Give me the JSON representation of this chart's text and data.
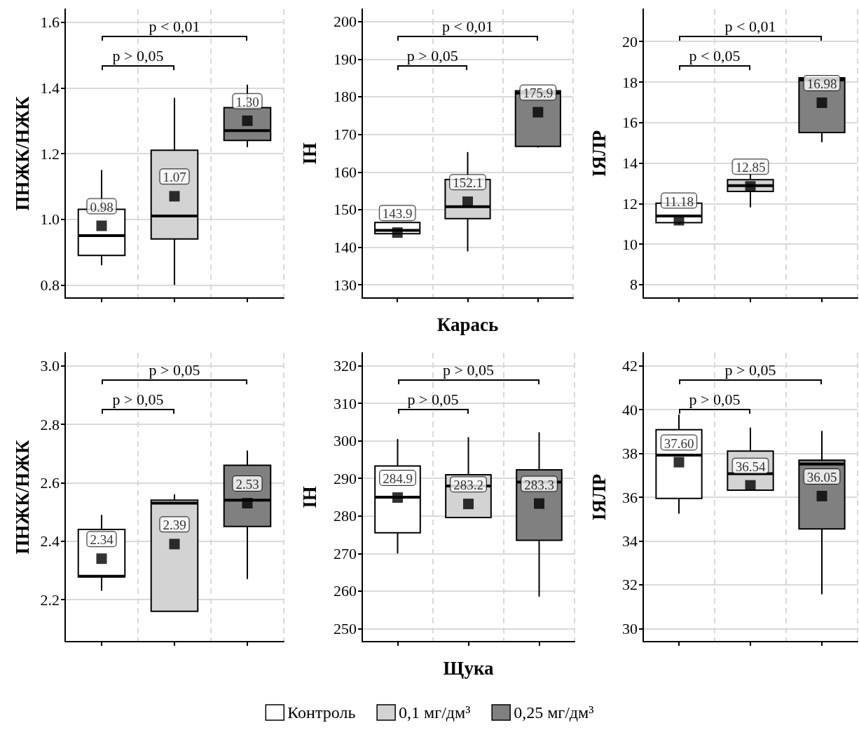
{
  "chart_data": [
    {
      "type": "box",
      "categories": [
        null,
        null,
        null
      ],
      "ylabel": "ПНЖК/НЖК",
      "ylim": [
        0.76,
        1.64
      ],
      "yticks": [
        0.8,
        {
          "value": 1,
          "label": "1.0"
        },
        1.2,
        1.4,
        1.6
      ],
      "grid": true,
      "tick_labels": "y",
      "marker": "square",
      "annotations": [
        "p < 0,01",
        "p > 0,05"
      ],
      "series": [
        {
          "color": "#ffffff",
          "boxes": [
            {
              "low": 0.86,
              "q1": 0.89,
              "median": 0.95,
              "q3": 1.03,
              "high": 1.15,
              "mean": 0.98
            },
            null,
            null
          ],
          "value_labels": [
            "0.98",
            null,
            null
          ]
        },
        {
          "color": "#d3d3d3",
          "boxes": [
            null,
            {
              "low": 0.8,
              "q1": 0.94,
              "median": 1.01,
              "q3": 1.21,
              "high": 1.37,
              "mean": 1.07
            },
            null
          ],
          "value_labels": [
            null,
            "1.07",
            null
          ]
        },
        {
          "color": "#808080",
          "boxes": [
            null,
            null,
            {
              "low": 1.22,
              "q1": 1.24,
              "median": 1.27,
              "q3": 1.34,
              "high": 1.41,
              "mean": 1.3
            }
          ],
          "value_labels": [
            null,
            null,
            "1.30"
          ]
        }
      ]
    },
    {
      "type": "box",
      "categories": [
        null,
        null,
        null
      ],
      "xlabel": "Карась",
      "ylabel": "ІН",
      "ylim": [
        126.5,
        203.3
      ],
      "yticks": [
        130,
        140,
        150,
        160,
        170,
        180,
        190,
        200
      ],
      "grid": true,
      "tick_labels": "y",
      "marker": "square",
      "annotations": [
        "p < 0,01",
        "p > 0,05"
      ],
      "series": [
        {
          "color": "#ffffff",
          "boxes": [
            {
              "low": 143.6,
              "q1": 143.6,
              "median": 144.5,
              "q3": 146.6,
              "high": 146.6,
              "mean": 143.9
            },
            null,
            null
          ],
          "value_labels": [
            "143.9",
            null,
            null
          ]
        },
        {
          "color": "#d3d3d3",
          "boxes": [
            null,
            {
              "low": 138.9,
              "q1": 147.6,
              "median": 150.8,
              "q3": 158,
              "high": 165.3,
              "mean": 152.1
            },
            null
          ],
          "value_labels": [
            null,
            "152.1",
            null
          ]
        },
        {
          "color": "#808080",
          "boxes": [
            null,
            null,
            {
              "low": 166.5,
              "q1": 166.8,
              "median": 181,
              "q3": 181.6,
              "high": 181.8,
              "mean": 175.9
            }
          ],
          "value_labels": [
            null,
            null,
            "175.9"
          ]
        }
      ]
    },
    {
      "type": "box",
      "categories": [
        null,
        null,
        null
      ],
      "ylabel": "ІЯЛР",
      "ylim": [
        7.34,
        21.6
      ],
      "yticks": [
        8,
        10,
        12,
        14,
        16,
        18,
        20
      ],
      "grid": true,
      "tick_labels": "y",
      "marker": "square",
      "annotations": [
        "p < 0,01",
        "p < 0,05"
      ],
      "series": [
        {
          "color": "#ffffff",
          "boxes": [
            {
              "low": 10.98,
              "q1": 11.06,
              "median": 11.39,
              "q3": 12.02,
              "high": 12.05,
              "mean": 11.18
            },
            null,
            null
          ],
          "value_labels": [
            "11.18",
            null,
            null
          ]
        },
        {
          "color": "#d3d3d3",
          "boxes": [
            null,
            {
              "low": 11.81,
              "q1": 12.6,
              "median": 12.89,
              "q3": 13.18,
              "high": 13.47,
              "mean": 12.85
            },
            null
          ],
          "value_labels": [
            null,
            "12.85",
            null
          ]
        },
        {
          "color": "#808080",
          "boxes": [
            null,
            null,
            {
              "low": 15.03,
              "q1": 15.51,
              "median": 18.1,
              "q3": 18.21,
              "high": 18.21,
              "mean": 16.98
            }
          ],
          "value_labels": [
            null,
            null,
            "16.98"
          ]
        }
      ]
    },
    {
      "type": "box",
      "categories": [
        null,
        null,
        null
      ],
      "ylabel": "ПНЖК/НЖК",
      "ylim": [
        2.056,
        3.045
      ],
      "yticks": [
        2.2,
        2.4,
        2.6,
        2.8,
        {
          "value": 3,
          "label": "3.0"
        }
      ],
      "grid": true,
      "tick_labels": "y",
      "marker": "square",
      "annotations": [
        "p > 0,05",
        "p > 0,05"
      ],
      "series": [
        {
          "color": "#ffffff",
          "boxes": [
            {
              "low": 2.23,
              "q1": 2.278,
              "median": 2.28,
              "q3": 2.44,
              "high": 2.49,
              "mean": 2.34
            },
            null,
            null
          ],
          "value_labels": [
            "2.34",
            null,
            null
          ]
        },
        {
          "color": "#d3d3d3",
          "boxes": [
            null,
            {
              "low": 2.16,
              "q1": 2.16,
              "median": 2.53,
              "q3": 2.54,
              "high": 2.56,
              "mean": 2.39
            },
            null
          ],
          "value_labels": [
            null,
            "2.39",
            null
          ]
        },
        {
          "color": "#808080",
          "boxes": [
            null,
            null,
            {
              "low": 2.27,
              "q1": 2.45,
              "median": 2.54,
              "q3": 2.66,
              "high": 2.71,
              "mean": 2.53
            }
          ],
          "value_labels": [
            null,
            null,
            "2.53"
          ]
        }
      ]
    },
    {
      "type": "box",
      "categories": [
        null,
        null,
        null
      ],
      "xlabel": "Щука",
      "ylabel": "ІН",
      "ylim": [
        246.5,
        323.5
      ],
      "yticks": [
        250,
        260,
        270,
        280,
        290,
        300,
        310,
        320
      ],
      "grid": true,
      "tick_labels": "y",
      "marker": "square",
      "legend": "bottom",
      "annotations": [
        "p > 0,05",
        "p > 0,05"
      ],
      "series": [
        {
          "name": "Контроль",
          "color": "#ffffff",
          "boxes": [
            {
              "low": 270,
              "q1": 275.5,
              "median": 285,
              "q3": 293.3,
              "high": 300.5,
              "mean": 284.9
            },
            null,
            null
          ],
          "value_labels": [
            "284.9",
            null,
            null
          ]
        },
        {
          "name": "0,1 мг/дм³",
          "color": "#d3d3d3",
          "boxes": [
            null,
            {
              "low": 279.6,
              "q1": 279.6,
              "median": 288,
              "q3": 291,
              "high": 301,
              "mean": 283.2
            },
            null
          ],
          "value_labels": [
            null,
            "283.2",
            null
          ]
        },
        {
          "name": "0,25 мг/дм³",
          "color": "#808080",
          "boxes": [
            null,
            null,
            {
              "low": 258.5,
              "q1": 273.5,
              "median": 289,
              "q3": 292.3,
              "high": 302.3,
              "mean": 283.3
            }
          ],
          "value_labels": [
            null,
            null,
            "283.3"
          ]
        }
      ]
    },
    {
      "type": "box",
      "categories": [
        null,
        null,
        null
      ],
      "ylabel": "ІЯЛР",
      "ylim": [
        29.4,
        42.6
      ],
      "yticks": [
        30,
        32,
        34,
        36,
        38,
        40,
        42
      ],
      "grid": true,
      "tick_labels": "y",
      "marker": "square",
      "annotations": [
        "p > 0,05",
        "p > 0,05"
      ],
      "series": [
        {
          "color": "#ffffff",
          "boxes": [
            {
              "low": 35.25,
              "q1": 35.94,
              "median": 37.92,
              "q3": 39.08,
              "high": 39.77,
              "mean": 37.6
            },
            null,
            null
          ],
          "value_labels": [
            "37.60",
            null,
            null
          ]
        },
        {
          "color": "#d3d3d3",
          "boxes": [
            null,
            {
              "low": 36.32,
              "q1": 36.32,
              "median": 37.07,
              "q3": 38.11,
              "high": 39.18,
              "mean": 36.54
            },
            null
          ],
          "value_labels": [
            null,
            "36.54",
            null
          ]
        },
        {
          "color": "#808080",
          "boxes": [
            null,
            null,
            {
              "low": 31.56,
              "q1": 34.55,
              "median": 37.51,
              "q3": 37.69,
              "high": 39.03,
              "mean": 36.05
            }
          ],
          "value_labels": [
            null,
            null,
            "36.05"
          ]
        }
      ]
    }
  ]
}
